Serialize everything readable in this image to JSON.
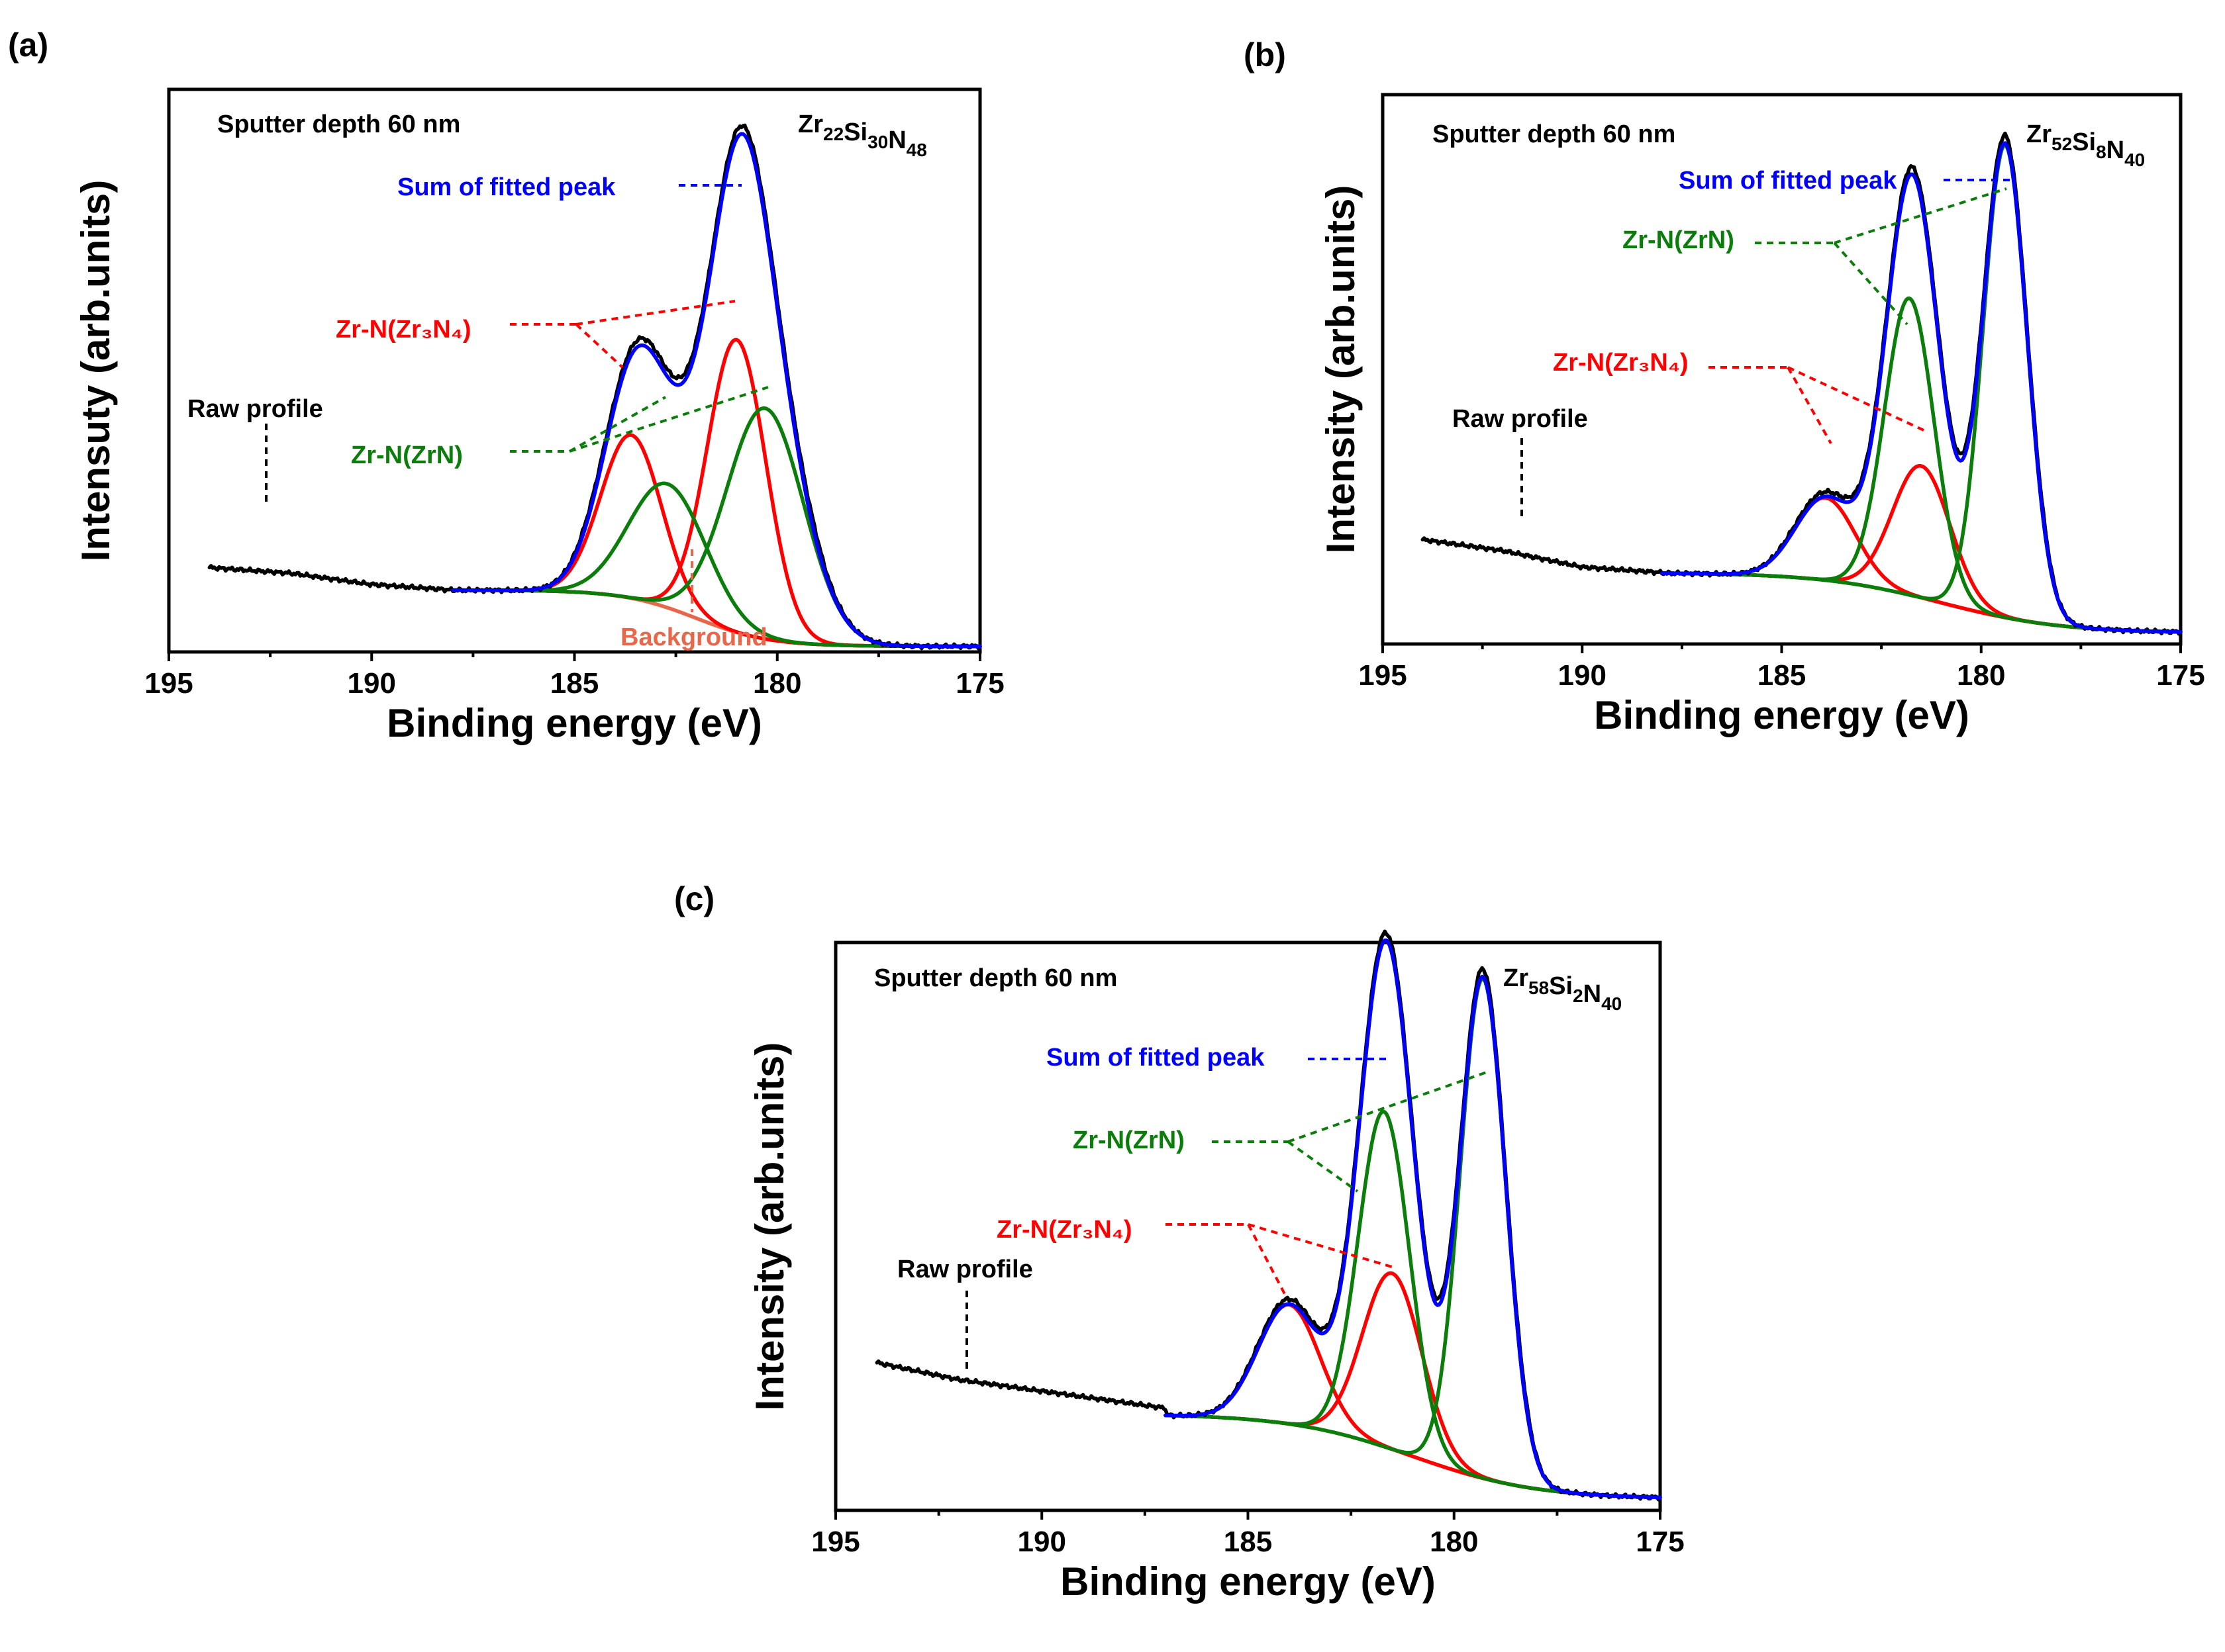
{
  "figure_panels": [
    {
      "label": "(a)",
      "sputter_text": "Sputter depth 60 nm",
      "composition": [
        {
          "t": "Zr",
          "s": "22"
        },
        {
          "t": "Si",
          "s": "30"
        },
        {
          "t": "N",
          "s": "48"
        }
      ],
      "annotations": {
        "sum": "Sum of fitted peak",
        "zr3n4": "Zr-N(Zr₃N₄)",
        "zrn": "Zr-N(ZrN)",
        "raw": "Raw profile",
        "background": "Background"
      },
      "ylabel": "Intensuty (arb.units)",
      "xlabel": "Binding energy (eV)"
    },
    {
      "label": "(b)",
      "sputter_text": "Sputter depth 60 nm",
      "composition": [
        {
          "t": "Zr",
          "s": "52"
        },
        {
          "t": "Si",
          "s": "8"
        },
        {
          "t": "N",
          "s": "40"
        }
      ],
      "annotations": {
        "sum": "Sum of fitted peak",
        "zr3n4": "Zr-N(Zr₃N₄)",
        "zrn": "Zr-N(ZrN)",
        "raw": "Raw profile"
      },
      "ylabel": "Intensity (arb.units)",
      "xlabel": "Binding energy (eV)"
    },
    {
      "label": "(c)",
      "sputter_text": "Sputter depth 60 nm",
      "composition": [
        {
          "t": "Zr",
          "s": "58"
        },
        {
          "t": "Si",
          "s": "2"
        },
        {
          "t": "N",
          "s": "40"
        }
      ],
      "annotations": {
        "sum": "Sum of fitted peak",
        "zrn": "Zr-N(ZrN)",
        "zr3n4": "Zr-N(Zr₃N₄)",
        "raw": "Raw profile"
      },
      "ylabel": "Intensity (arb.units)",
      "xlabel": "Binding energy (eV)"
    }
  ],
  "colors": {
    "raw": "#000000",
    "sum": "#0000ff",
    "zr3n4": "#ff0000",
    "zrn": "#0a7d0a",
    "background": "#e8674a"
  },
  "chart_data": [
    {
      "type": "line",
      "title": "(a) Zr22Si30N48",
      "xlabel": "Binding energy (eV)",
      "ylabel": "Intensuty (arb.units)",
      "xlim": [
        195,
        175
      ],
      "ylim": [
        0,
        1
      ],
      "xticks": [
        195,
        190,
        185,
        180,
        175
      ],
      "raw_range": [
        194,
        175
      ],
      "fit_range": [
        188,
        175
      ],
      "background": {
        "high": 0.11,
        "low": 0.01,
        "center": 182,
        "width": 0.9
      },
      "raw_tail": [
        [
          194,
          0.15
        ],
        [
          192,
          0.14
        ],
        [
          190,
          0.12
        ],
        [
          188,
          0.11
        ]
      ],
      "series": [
        {
          "name": "Zr-N(Zr3N4)",
          "peaks": [
            {
              "center": 183.6,
              "amp": 0.29,
              "width": 0.75
            },
            {
              "center": 181.0,
              "amp": 0.52,
              "width": 0.72
            }
          ]
        },
        {
          "name": "Zr-N(ZrN)",
          "peaks": [
            {
              "center": 182.7,
              "amp": 0.22,
              "width": 0.95
            },
            {
              "center": 180.3,
              "amp": 0.41,
              "width": 0.95
            }
          ]
        }
      ]
    },
    {
      "type": "line",
      "title": "(b) Zr52Si8N40",
      "xlabel": "Binding energy (eV)",
      "ylabel": "Intensity (arb.units)",
      "xlim": [
        195,
        175
      ],
      "ylim": [
        0,
        1
      ],
      "xticks": [
        195,
        190,
        185,
        180,
        175
      ],
      "raw_range": [
        194,
        175
      ],
      "fit_range": [
        188,
        175
      ],
      "background": {
        "high": 0.13,
        "low": 0.02,
        "center": 181.0,
        "width": 1.5
      },
      "raw_tail": [
        [
          194,
          0.19
        ],
        [
          192,
          0.17
        ],
        [
          190,
          0.14
        ],
        [
          188,
          0.13
        ]
      ],
      "series": [
        {
          "name": "Zr-N(Zr3N4)",
          "peaks": [
            {
              "center": 183.9,
              "amp": 0.15,
              "width": 0.75
            },
            {
              "center": 181.5,
              "amp": 0.24,
              "width": 0.72
            }
          ]
        },
        {
          "name": "Zr-N(ZrN)",
          "peaks": [
            {
              "center": 181.8,
              "amp": 0.54,
              "width": 0.62
            },
            {
              "center": 179.4,
              "amp": 0.86,
              "width": 0.55
            }
          ]
        }
      ]
    },
    {
      "type": "line",
      "title": "(c) Zr58Si2N40",
      "xlabel": "Binding energy (eV)",
      "ylabel": "Intensity (arb.units)",
      "xlim": [
        195,
        175
      ],
      "ylim": [
        0,
        1
      ],
      "xticks": [
        195,
        190,
        185,
        180,
        175
      ],
      "raw_range": [
        194,
        175
      ],
      "fit_range": [
        187,
        175
      ],
      "background": {
        "high": 0.17,
        "low": 0.02,
        "center": 181.0,
        "width": 1.5
      },
      "raw_tail": [
        [
          194,
          0.26
        ],
        [
          192,
          0.23
        ],
        [
          190,
          0.21
        ],
        [
          188,
          0.19
        ],
        [
          187,
          0.18
        ]
      ],
      "series": [
        {
          "name": "Zr-N(Zr3N4)",
          "peaks": [
            {
              "center": 184.0,
              "amp": 0.21,
              "width": 0.75
            },
            {
              "center": 181.5,
              "amp": 0.31,
              "width": 0.72
            }
          ]
        },
        {
          "name": "Zr-N(ZrN)",
          "peaks": [
            {
              "center": 181.7,
              "amp": 0.59,
              "width": 0.62
            },
            {
              "center": 179.3,
              "amp": 0.88,
              "width": 0.55
            }
          ]
        }
      ]
    }
  ]
}
